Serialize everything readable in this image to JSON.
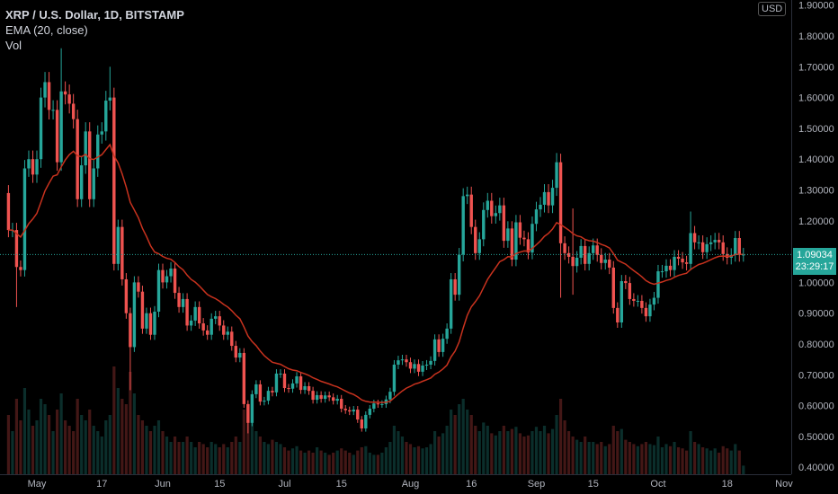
{
  "legend": {
    "title": "XRP / U.S. Dollar, 1D, BITSTAMP",
    "ema": "EMA (20, close)",
    "vol": "Vol"
  },
  "currency_button": "USD",
  "last_price": {
    "value": "1.09034",
    "countdown": "23:29:17"
  },
  "colors": {
    "up": "#26a69a",
    "down": "#ef5350",
    "ema": "#c8321e",
    "background": "#000000",
    "axis_text": "#b2b5be"
  },
  "chart_data": {
    "type": "candlestick",
    "symbol": "XRP / U.S. Dollar",
    "interval": "1D",
    "exchange": "BITSTAMP",
    "first_open": 1.29,
    "closes": [
      1.17,
      1.17,
      1.05,
      1.04,
      1.37,
      1.4,
      1.35,
      1.4,
      1.6,
      1.65,
      1.56,
      1.56,
      1.39,
      1.62,
      1.61,
      1.58,
      1.53,
      1.27,
      1.38,
      1.49,
      1.27,
      1.37,
      1.48,
      1.49,
      1.59,
      1.6,
      1.06,
      1.18,
      1.01,
      0.9,
      0.79,
      1.0,
      0.97,
      0.85,
      0.9,
      0.83,
      0.905,
      1.04,
      1.0,
      1.02,
      1.045,
      0.966,
      0.92,
      0.946,
      0.86,
      0.876,
      0.92,
      0.867,
      0.844,
      0.83,
      0.882,
      0.89,
      0.86,
      0.83,
      0.84,
      0.794,
      0.756,
      0.771,
      0.605,
      0.544,
      0.637,
      0.669,
      0.613,
      0.616,
      0.648,
      0.643,
      0.704,
      0.704,
      0.657,
      0.655,
      0.672,
      0.695,
      0.651,
      0.663,
      0.648,
      0.619,
      0.634,
      0.622,
      0.633,
      0.627,
      0.616,
      0.622,
      0.59,
      0.585,
      0.581,
      0.587,
      0.555,
      0.526,
      0.57,
      0.59,
      0.607,
      0.605,
      0.605,
      0.62,
      0.645,
      0.733,
      0.747,
      0.75,
      0.741,
      0.72,
      0.735,
      0.71,
      0.73,
      0.733,
      0.745,
      0.815,
      0.774,
      0.817,
      0.85,
      1.01,
      0.96,
      1.09,
      1.28,
      1.285,
      1.18,
      1.095,
      1.14,
      1.235,
      1.265,
      1.215,
      1.225,
      1.25,
      1.135,
      1.175,
      1.074,
      1.195,
      1.145,
      1.14,
      1.097,
      1.19,
      1.237,
      1.252,
      1.293,
      1.25,
      1.307,
      1.39,
      1.127,
      1.095,
      1.083,
      1.053,
      1.08,
      1.118,
      1.06,
      1.095,
      1.12,
      1.089,
      1.063,
      1.074,
      1.048,
      0.917,
      0.87,
      1.004,
      0.998,
      0.946,
      0.94,
      0.94,
      0.917,
      0.89,
      0.928,
      0.95,
      1.036,
      1.036,
      1.054,
      1.04,
      1.083,
      1.077,
      1.065,
      1.06,
      1.16,
      1.13,
      1.13,
      1.098,
      1.124,
      1.13,
      1.138,
      1.13,
      1.092,
      1.08,
      1.089,
      1.144,
      1.089,
      1.0903
    ],
    "wick_extremes": [
      {
        "i": 2,
        "low": 0.92
      },
      {
        "i": 13,
        "high": 1.76
      },
      {
        "i": 25,
        "high": 1.7
      },
      {
        "i": 30,
        "low": 0.65
      },
      {
        "i": 59,
        "low": 0.51
      },
      {
        "i": 135,
        "high": 1.42
      },
      {
        "i": 136,
        "low": 0.95
      },
      {
        "i": 139,
        "high": 1.24,
        "low": 0.96
      },
      {
        "i": 168,
        "high": 1.23
      }
    ],
    "volume_relative": [
      55,
      40,
      70,
      50,
      80,
      60,
      45,
      50,
      70,
      65,
      55,
      40,
      60,
      75,
      50,
      45,
      40,
      70,
      55,
      50,
      60,
      45,
      40,
      35,
      50,
      55,
      100,
      80,
      70,
      65,
      95,
      75,
      55,
      50,
      45,
      40,
      45,
      50,
      40,
      35,
      30,
      35,
      30,
      30,
      35,
      30,
      25,
      30,
      28,
      25,
      30,
      28,
      25,
      28,
      25,
      30,
      35,
      30,
      60,
      65,
      50,
      40,
      35,
      30,
      28,
      32,
      30,
      28,
      25,
      22,
      24,
      26,
      22,
      20,
      22,
      20,
      25,
      22,
      20,
      18,
      20,
      22,
      24,
      22,
      20,
      18,
      22,
      25,
      26,
      20,
      18,
      18,
      20,
      25,
      30,
      45,
      40,
      35,
      30,
      28,
      25,
      26,
      24,
      25,
      28,
      40,
      35,
      38,
      45,
      60,
      55,
      65,
      70,
      60,
      55,
      45,
      40,
      48,
      45,
      38,
      36,
      40,
      45,
      40,
      42,
      44,
      38,
      35,
      36,
      40,
      44,
      40,
      45,
      38,
      42,
      55,
      70,
      50,
      40,
      35,
      32,
      30,
      35,
      30,
      30,
      28,
      30,
      26,
      28,
      45,
      40,
      42,
      32,
      30,
      28,
      26,
      28,
      30,
      28,
      27,
      35,
      25,
      28,
      26,
      30,
      25,
      24,
      22,
      40,
      30,
      28,
      25,
      24,
      22,
      24,
      20,
      26,
      24,
      22,
      28,
      22,
      8
    ],
    "ema_period": 20,
    "ylim": [
      0.4,
      1.9
    ],
    "y_ticks": [
      "1.80000",
      "1.70000",
      "1.60000",
      "1.50000",
      "1.40000",
      "1.30000",
      "1.20000",
      "1.00000",
      "0.90000",
      "0.80000",
      "0.70000",
      "0.60000",
      "0.50000",
      "0.40000"
    ],
    "y_top_partial_tick": "1.90000",
    "x_ticks": [
      {
        "label": "May",
        "date": "05-01"
      },
      {
        "label": "17",
        "date": "05-17"
      },
      {
        "label": "Jun",
        "date": "06-01"
      },
      {
        "label": "15",
        "date": "06-15"
      },
      {
        "label": "Jul",
        "date": "07-01"
      },
      {
        "label": "15",
        "date": "07-15"
      },
      {
        "label": "Aug",
        "date": "08-01"
      },
      {
        "label": "16",
        "date": "08-16"
      },
      {
        "label": "Sep",
        "date": "09-01"
      },
      {
        "label": "15",
        "date": "09-15"
      },
      {
        "label": "Oct",
        "date": "10-01"
      },
      {
        "label": "18",
        "date": "10-18"
      },
      {
        "label": "Nov",
        "date": "11-01"
      }
    ],
    "last_price": 1.09034,
    "grid": false
  }
}
